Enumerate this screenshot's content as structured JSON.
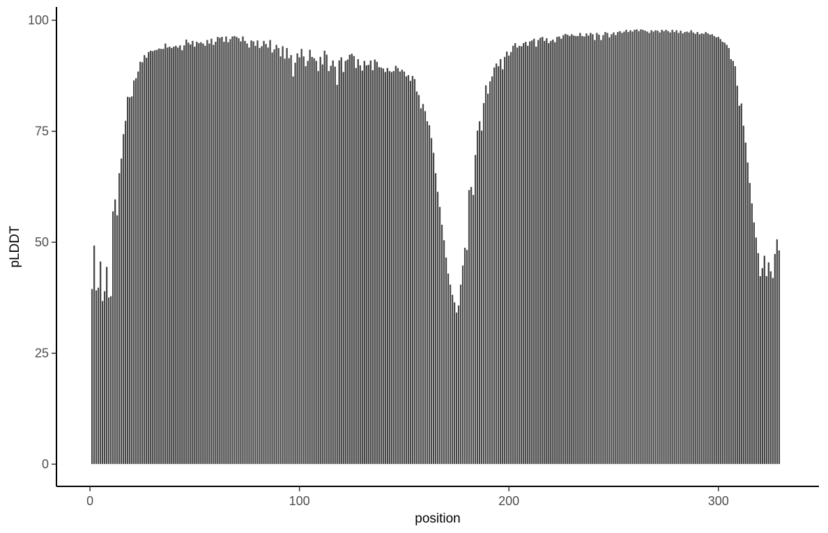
{
  "chart_data": {
    "type": "bar",
    "title": "",
    "xlabel": "position",
    "ylabel": "pLDDT",
    "xlim": [
      -16,
      348
    ],
    "ylim": [
      -5,
      103
    ],
    "x_ticks": [
      0,
      100,
      200,
      300
    ],
    "y_ticks": [
      0,
      25,
      50,
      75,
      100
    ],
    "x_tick_labels": [
      "0",
      "100",
      "200",
      "300"
    ],
    "y_tick_labels": [
      "0",
      "25",
      "50",
      "75",
      "100"
    ],
    "bar_color": "#474747",
    "bar_outline": "#ffffff",
    "grid": false,
    "legend": "none",
    "series": [
      {
        "x_start": 1,
        "values": [
          39.5,
          49.3,
          39.2,
          39.8,
          45.7,
          36.8,
          39.0,
          44.5,
          37.6,
          37.9,
          57.0,
          59.7,
          56.1,
          65.6,
          68.9,
          74.4,
          77.4,
          82.8,
          82.7,
          82.9,
          86.5,
          87.0,
          88.5,
          90.7,
          90.6,
          92.2,
          91.6,
          92.9,
          93.2,
          93.1,
          93.3,
          93.4,
          93.7,
          93.6,
          93.6,
          94.8,
          93.9,
          94.1,
          93.8,
          94.1,
          94.3,
          93.9,
          94.4,
          93.3,
          94.4,
          95.7,
          95.0,
          94.6,
          95.4,
          94.1,
          95.2,
          94.9,
          95.1,
          94.8,
          94.3,
          95.6,
          94.8,
          95.9,
          94.5,
          95.2,
          96.3,
          96.1,
          96.3,
          95.2,
          96.4,
          95.1,
          95.8,
          96.4,
          96.5,
          96.3,
          96.0,
          95.3,
          96.4,
          95.4,
          94.8,
          93.9,
          95.5,
          95.3,
          94.3,
          95.5,
          93.8,
          94.2,
          95.4,
          94.7,
          93.9,
          95.6,
          92.8,
          93.5,
          94.5,
          93.8,
          91.9,
          94.2,
          91.4,
          93.8,
          91.5,
          92.2,
          87.4,
          90.5,
          92.6,
          91.7,
          93.6,
          91.9,
          89.7,
          90.9,
          93.4,
          91.8,
          91.5,
          90.9,
          88.6,
          91.8,
          90.1,
          93.2,
          92.3,
          88.6,
          89.8,
          91.0,
          89.6,
          85.5,
          91.0,
          91.7,
          88.4,
          90.9,
          91.2,
          92.3,
          92.5,
          92.0,
          89.3,
          91.3,
          89.9,
          88.7,
          90.9,
          89.9,
          90.0,
          91.0,
          88.8,
          91.2,
          90.7,
          89.5,
          89.4,
          89.2,
          88.4,
          89.3,
          88.6,
          88.4,
          88.6,
          89.8,
          89.3,
          88.5,
          88.9,
          88.5,
          87.4,
          87.7,
          86.4,
          87.5,
          86.8,
          84.0,
          83.2,
          80.2,
          81.2,
          79.6,
          77.3,
          76.4,
          73.5,
          70.2,
          65.6,
          61.4,
          58.0,
          54.0,
          50.5,
          46.6,
          43.0,
          40.5,
          38.2,
          36.5,
          34.2,
          35.8,
          40.5,
          44.8,
          48.8,
          48.3,
          61.8,
          62.5,
          60.7,
          69.7,
          75.2,
          77.3,
          75.2,
          81.4,
          85.4,
          83.5,
          86.3,
          87.4,
          89.4,
          90.3,
          89.7,
          91.3,
          89.0,
          91.8,
          93.0,
          92.1,
          92.9,
          94.3,
          94.9,
          93.9,
          94.3,
          94.2,
          94.9,
          95.2,
          94.3,
          95.3,
          95.5,
          95.9,
          94.1,
          95.6,
          96.1,
          96.3,
          95.4,
          96.0,
          94.9,
          95.4,
          95.7,
          95.1,
          96.3,
          96.4,
          95.9,
          96.7,
          97.0,
          96.8,
          96.5,
          96.9,
          96.6,
          96.5,
          96.5,
          97.2,
          96.5,
          96.4,
          97.1,
          96.6,
          97.2,
          96.9,
          95.6,
          97.2,
          96.8,
          95.6,
          96.7,
          97.4,
          97.2,
          96.2,
          96.9,
          97.3,
          96.7,
          97.4,
          97.6,
          97.2,
          97.5,
          97.9,
          97.4,
          97.8,
          97.5,
          97.9,
          98.0,
          97.6,
          98.0,
          97.9,
          97.7,
          97.5,
          97.2,
          97.8,
          97.5,
          97.8,
          97.7,
          97.3,
          97.9,
          97.6,
          97.9,
          97.6,
          97.3,
          97.9,
          97.4,
          97.8,
          97.2,
          97.7,
          97.1,
          97.4,
          97.5,
          97.3,
          97.8,
          97.3,
          97.0,
          97.4,
          96.9,
          97.1,
          97.0,
          97.4,
          97.1,
          96.8,
          96.9,
          96.5,
          96.2,
          96.3,
          95.8,
          95.2,
          95.0,
          94.5,
          93.8,
          91.3,
          90.9,
          89.7,
          85.3,
          80.8,
          81.3,
          76.3,
          72.5,
          68.0,
          63.4,
          58.8,
          54.5,
          51.1,
          47.6,
          42.4,
          44.2,
          47.0,
          42.4,
          45.5,
          43.5,
          42.0,
          47.4,
          50.7,
          48.2
        ]
      }
    ]
  }
}
